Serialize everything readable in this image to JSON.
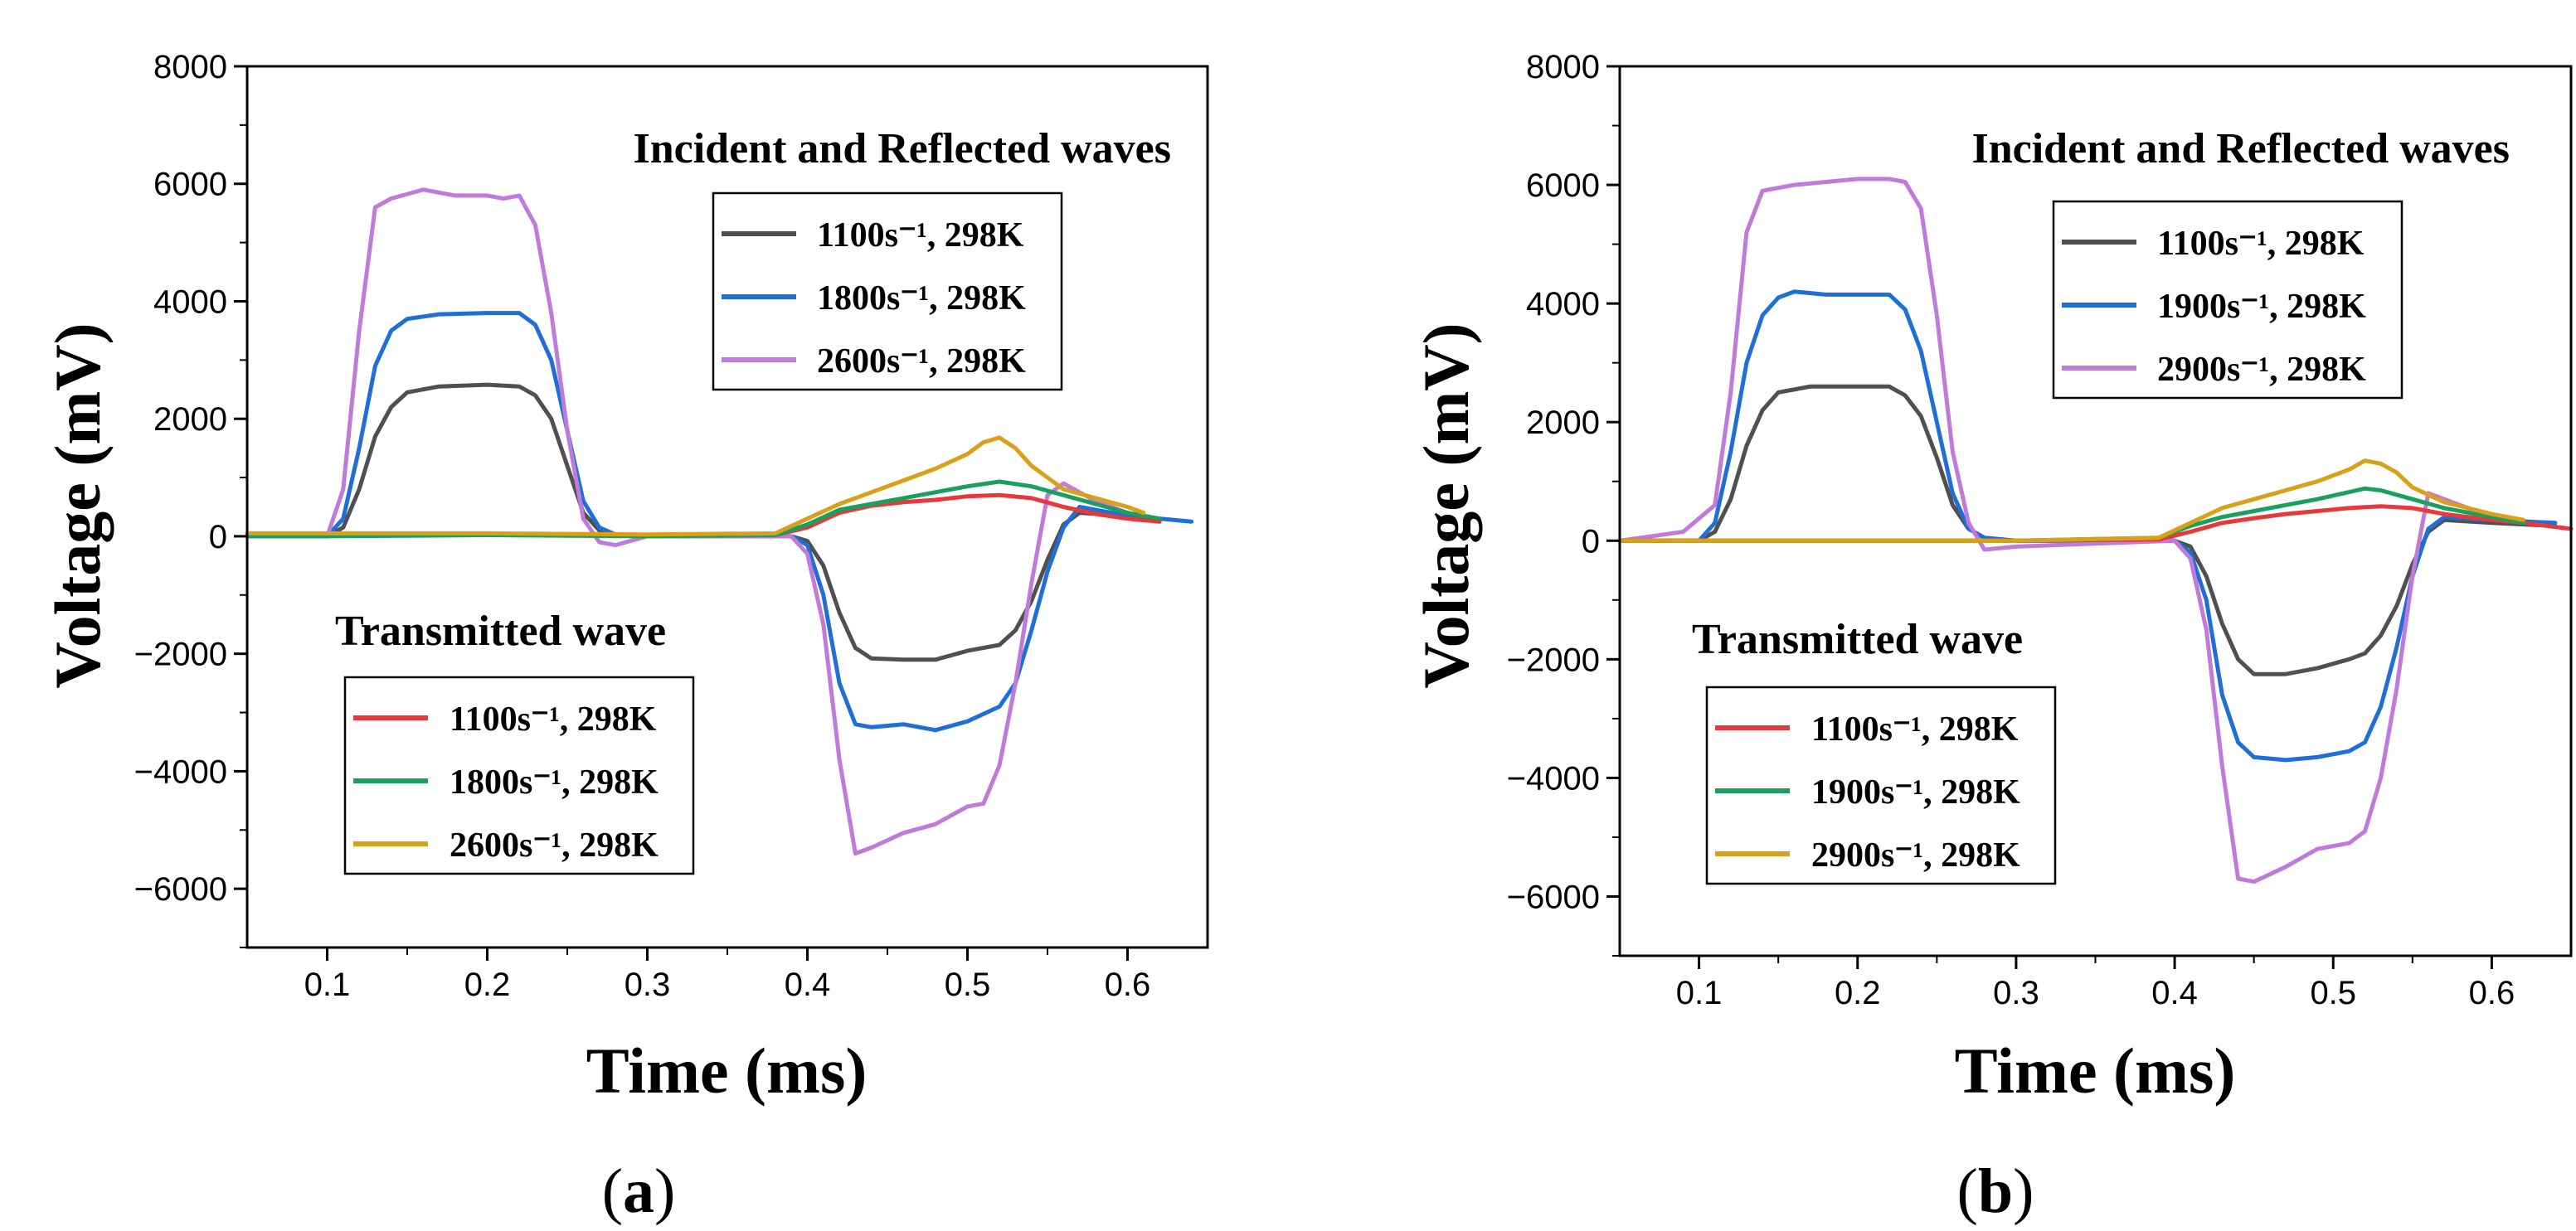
{
  "chart_data": [
    {
      "type": "line",
      "panel": "(a)",
      "panel_letter": "a",
      "xlabel": "Time (ms)",
      "ylabel": "Voltage (mV)",
      "xlim": [
        0.05,
        0.65
      ],
      "ylim": [
        -7000,
        8000
      ],
      "xticks": [
        0.1,
        0.2,
        0.3,
        0.4,
        0.5,
        0.6
      ],
      "xtick_labels": [
        "0.1",
        "0.2",
        "0.3",
        "0.4",
        "0.5",
        "0.6"
      ],
      "yticks": [
        8000,
        6000,
        4000,
        2000,
        0,
        -2000,
        -4000,
        -6000
      ],
      "ytick_labels": [
        "8000",
        "6000",
        "4000",
        "2000",
        "0",
        "−2000",
        "−4000",
        "−6000"
      ],
      "annotations": {
        "incident_title": "Incident and Reflected waves",
        "transmitted_title": "Transmitted wave"
      },
      "series": [
        {
          "name": "1100s⁻¹, 298K",
          "group": "incident",
          "color": "#505050",
          "x": [
            0.05,
            0.1,
            0.11,
            0.12,
            0.13,
            0.14,
            0.15,
            0.17,
            0.2,
            0.22,
            0.23,
            0.24,
            0.25,
            0.26,
            0.27,
            0.28,
            0.3,
            0.35,
            0.39,
            0.4,
            0.41,
            0.42,
            0.43,
            0.44,
            0.46,
            0.48,
            0.5,
            0.52,
            0.53,
            0.54,
            0.55,
            0.56,
            0.57,
            0.6,
            0.62
          ],
          "y": [
            0,
            0,
            150,
            800,
            1700,
            2200,
            2450,
            2550,
            2580,
            2550,
            2400,
            2000,
            1200,
            400,
            100,
            20,
            0,
            0,
            0,
            -80,
            -500,
            -1300,
            -1900,
            -2080,
            -2100,
            -2100,
            -1950,
            -1850,
            -1600,
            -1100,
            -400,
            200,
            400,
            350,
            250
          ]
        },
        {
          "name": "1800s⁻¹, 298K",
          "group": "incident",
          "color": "#1f6fd6",
          "x": [
            0.05,
            0.1,
            0.11,
            0.12,
            0.13,
            0.14,
            0.15,
            0.17,
            0.2,
            0.22,
            0.23,
            0.24,
            0.25,
            0.26,
            0.27,
            0.28,
            0.3,
            0.35,
            0.39,
            0.4,
            0.41,
            0.42,
            0.43,
            0.44,
            0.46,
            0.48,
            0.5,
            0.52,
            0.53,
            0.54,
            0.55,
            0.56,
            0.57,
            0.6,
            0.64
          ],
          "y": [
            0,
            0,
            300,
            1500,
            2900,
            3500,
            3700,
            3780,
            3800,
            3800,
            3600,
            3000,
            1800,
            600,
            150,
            30,
            0,
            0,
            0,
            -150,
            -1000,
            -2500,
            -3200,
            -3250,
            -3200,
            -3300,
            -3150,
            -2900,
            -2500,
            -1600,
            -600,
            150,
            500,
            350,
            250
          ]
        },
        {
          "name": "2600s⁻¹, 298K",
          "group": "incident",
          "color": "#c07ad9",
          "x": [
            0.05,
            0.1,
            0.11,
            0.12,
            0.13,
            0.14,
            0.16,
            0.18,
            0.2,
            0.21,
            0.22,
            0.23,
            0.24,
            0.25,
            0.26,
            0.27,
            0.28,
            0.3,
            0.35,
            0.39,
            0.4,
            0.41,
            0.42,
            0.43,
            0.44,
            0.46,
            0.48,
            0.5,
            0.51,
            0.52,
            0.53,
            0.54,
            0.55,
            0.56,
            0.58,
            0.6
          ],
          "y": [
            0,
            0,
            800,
            3500,
            5600,
            5750,
            5900,
            5800,
            5800,
            5750,
            5800,
            5300,
            3800,
            1800,
            300,
            -100,
            -150,
            0,
            0,
            0,
            -300,
            -1500,
            -3800,
            -5400,
            -5300,
            -5050,
            -4900,
            -4600,
            -4550,
            -3900,
            -2500,
            -800,
            700,
            900,
            600,
            400
          ]
        },
        {
          "name": "1100s⁻¹, 298K",
          "group": "transmitted",
          "color": "#e8383a",
          "x": [
            0.05,
            0.1,
            0.2,
            0.3,
            0.38,
            0.4,
            0.42,
            0.44,
            0.46,
            0.48,
            0.5,
            0.52,
            0.54,
            0.56,
            0.58,
            0.6,
            0.62
          ],
          "y": [
            0,
            30,
            30,
            20,
            20,
            150,
            400,
            520,
            580,
            620,
            680,
            700,
            650,
            500,
            380,
            300,
            250
          ]
        },
        {
          "name": "1800s⁻¹, 298K",
          "group": "transmitted",
          "color": "#1aa05e",
          "x": [
            0.05,
            0.1,
            0.2,
            0.3,
            0.38,
            0.4,
            0.42,
            0.44,
            0.46,
            0.48,
            0.5,
            0.52,
            0.54,
            0.56,
            0.58,
            0.6,
            0.62
          ],
          "y": [
            0,
            0,
            20,
            0,
            20,
            200,
            450,
            550,
            650,
            750,
            850,
            930,
            850,
            700,
            550,
            400,
            300
          ]
        },
        {
          "name": "2600s⁻¹, 298K",
          "group": "transmitted",
          "color": "#d9a01a",
          "x": [
            0.05,
            0.1,
            0.2,
            0.3,
            0.38,
            0.4,
            0.42,
            0.44,
            0.46,
            0.48,
            0.5,
            0.51,
            0.52,
            0.53,
            0.54,
            0.56,
            0.58,
            0.6,
            0.61
          ],
          "y": [
            50,
            50,
            50,
            30,
            50,
            300,
            550,
            750,
            950,
            1150,
            1400,
            1600,
            1680,
            1500,
            1200,
            800,
            650,
            500,
            400
          ]
        }
      ]
    },
    {
      "type": "line",
      "panel": "(b)",
      "panel_letter": "b",
      "xlabel": "Time (ms)",
      "ylabel": "Voltage (mV)",
      "xlim": [
        0.05,
        0.65
      ],
      "ylim": [
        -7000,
        8000
      ],
      "xticks": [
        0.1,
        0.2,
        0.3,
        0.4,
        0.5,
        0.6
      ],
      "xtick_labels": [
        "0.1",
        "0.2",
        "0.3",
        "0.4",
        "0.5",
        "0.6"
      ],
      "yticks": [
        8000,
        6000,
        4000,
        2000,
        0,
        -2000,
        -4000,
        -6000
      ],
      "ytick_labels": [
        "8000",
        "6000",
        "4000",
        "2000",
        "0",
        "−2000",
        "−4000",
        "−6000"
      ],
      "annotations": {
        "incident_title": "Incident and Reflected waves",
        "transmitted_title": "Transmitted wave"
      },
      "series": [
        {
          "name": "1100s⁻¹, 298K",
          "group": "incident",
          "color": "#505050",
          "x": [
            0.05,
            0.1,
            0.11,
            0.12,
            0.13,
            0.14,
            0.15,
            0.17,
            0.2,
            0.22,
            0.23,
            0.24,
            0.25,
            0.26,
            0.27,
            0.28,
            0.3,
            0.35,
            0.4,
            0.41,
            0.42,
            0.43,
            0.44,
            0.45,
            0.47,
            0.49,
            0.51,
            0.52,
            0.53,
            0.54,
            0.55,
            0.56,
            0.57,
            0.6,
            0.64
          ],
          "y": [
            0,
            0,
            150,
            700,
            1600,
            2200,
            2500,
            2600,
            2600,
            2600,
            2450,
            2100,
            1400,
            600,
            200,
            50,
            0,
            0,
            0,
            -100,
            -600,
            -1400,
            -2000,
            -2250,
            -2250,
            -2150,
            -2000,
            -1900,
            -1600,
            -1100,
            -400,
            150,
            350,
            300,
            250
          ]
        },
        {
          "name": "1900s⁻¹, 298K",
          "group": "incident",
          "color": "#1f6fd6",
          "x": [
            0.05,
            0.1,
            0.11,
            0.12,
            0.13,
            0.14,
            0.15,
            0.16,
            0.18,
            0.2,
            0.22,
            0.23,
            0.24,
            0.25,
            0.26,
            0.27,
            0.28,
            0.3,
            0.35,
            0.4,
            0.41,
            0.42,
            0.43,
            0.44,
            0.45,
            0.47,
            0.49,
            0.51,
            0.52,
            0.53,
            0.54,
            0.55,
            0.56,
            0.57,
            0.6,
            0.64
          ],
          "y": [
            0,
            0,
            300,
            1500,
            3000,
            3800,
            4100,
            4200,
            4150,
            4150,
            4150,
            3900,
            3200,
            2000,
            800,
            200,
            50,
            0,
            0,
            0,
            -200,
            -1000,
            -2600,
            -3400,
            -3650,
            -3700,
            -3650,
            -3550,
            -3400,
            -2800,
            -1800,
            -600,
            200,
            400,
            350,
            300
          ]
        },
        {
          "name": "2900s⁻¹, 298K",
          "group": "incident",
          "color": "#c07ad9",
          "x": [
            0.05,
            0.09,
            0.11,
            0.12,
            0.13,
            0.14,
            0.16,
            0.18,
            0.2,
            0.22,
            0.23,
            0.24,
            0.25,
            0.26,
            0.27,
            0.28,
            0.3,
            0.35,
            0.4,
            0.41,
            0.42,
            0.43,
            0.44,
            0.45,
            0.47,
            0.49,
            0.51,
            0.52,
            0.53,
            0.54,
            0.55,
            0.56,
            0.58,
            0.6
          ],
          "y": [
            0,
            150,
            600,
            2500,
            5200,
            5900,
            6000,
            6050,
            6100,
            6100,
            6050,
            5600,
            3800,
            1500,
            300,
            -150,
            -100,
            -50,
            0,
            -300,
            -1500,
            -3800,
            -5700,
            -5750,
            -5500,
            -5200,
            -5100,
            -4900,
            -4000,
            -2500,
            -600,
            800,
            600,
            400
          ]
        },
        {
          "name": "1100s⁻¹, 298K",
          "group": "transmitted",
          "color": "#e8383a",
          "x": [
            0.05,
            0.1,
            0.2,
            0.3,
            0.39,
            0.41,
            0.43,
            0.45,
            0.47,
            0.49,
            0.51,
            0.53,
            0.55,
            0.57,
            0.6,
            0.62,
            0.65
          ],
          "y": [
            0,
            0,
            0,
            0,
            20,
            150,
            300,
            380,
            450,
            500,
            550,
            580,
            550,
            450,
            350,
            300,
            200
          ]
        },
        {
          "name": "1900s⁻¹, 298K",
          "group": "transmitted",
          "color": "#1aa05e",
          "x": [
            0.05,
            0.1,
            0.2,
            0.3,
            0.39,
            0.41,
            0.43,
            0.45,
            0.47,
            0.49,
            0.51,
            0.52,
            0.53,
            0.55,
            0.57,
            0.6,
            0.62
          ],
          "y": [
            0,
            0,
            0,
            0,
            50,
            250,
            400,
            500,
            600,
            700,
            820,
            880,
            850,
            700,
            550,
            400,
            300
          ]
        },
        {
          "name": "2900s⁻¹, 298K",
          "group": "transmitted",
          "color": "#d9a01a",
          "x": [
            0.05,
            0.1,
            0.2,
            0.3,
            0.39,
            0.41,
            0.43,
            0.45,
            0.47,
            0.49,
            0.51,
            0.52,
            0.53,
            0.54,
            0.55,
            0.57,
            0.6,
            0.62
          ],
          "y": [
            0,
            0,
            0,
            0,
            50,
            300,
            550,
            700,
            850,
            1000,
            1200,
            1350,
            1300,
            1150,
            900,
            650,
            450,
            350
          ]
        }
      ]
    }
  ]
}
